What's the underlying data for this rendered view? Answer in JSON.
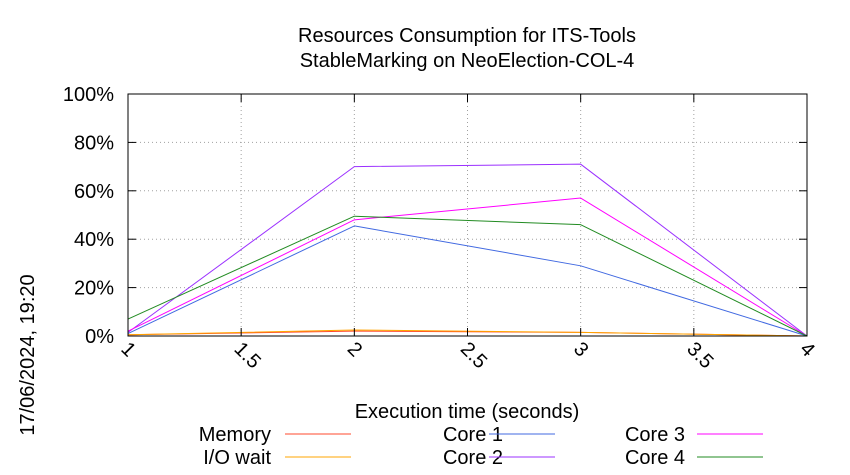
{
  "chart_data": {
    "type": "line",
    "title_lines": [
      "Resources Consumption for ITS-Tools",
      "StableMarking on NeoElection-COL-4"
    ],
    "xlabel": "Execution time (seconds)",
    "ylabel": "",
    "timestamp": "17/06/2024, 19:20",
    "xlim": [
      1,
      4
    ],
    "ylim": [
      0,
      100
    ],
    "x_ticks": [
      1,
      1.5,
      2,
      2.5,
      3,
      3.5,
      4
    ],
    "x_tick_labels": [
      "1",
      "1.5",
      "2",
      "2.5",
      "3",
      "3.5",
      "4"
    ],
    "y_ticks": [
      0,
      20,
      40,
      60,
      80,
      100
    ],
    "y_tick_labels": [
      "0%",
      "20%",
      "40%",
      "60%",
      "80%",
      "100%"
    ],
    "grid": true,
    "legend_position": "bottom",
    "x": [
      1,
      2,
      3,
      4
    ],
    "series": [
      {
        "name": "Memory",
        "color": "#ff4a2e",
        "values": [
          0.5,
          2,
          1.5,
          0
        ]
      },
      {
        "name": "I/O wait",
        "color": "#ffa500",
        "values": [
          0.5,
          2.5,
          1.5,
          0
        ]
      },
      {
        "name": "Core 1",
        "color": "#4169e1",
        "values": [
          1,
          45.5,
          29,
          0
        ]
      },
      {
        "name": "Core 2",
        "color": "#9b30ff",
        "values": [
          1.5,
          70,
          71,
          0
        ]
      },
      {
        "name": "Core 3",
        "color": "#ff00ff",
        "values": [
          2,
          48,
          57,
          0
        ]
      },
      {
        "name": "Core 4",
        "color": "#228b22",
        "values": [
          7,
          49.5,
          46,
          0
        ]
      }
    ]
  }
}
